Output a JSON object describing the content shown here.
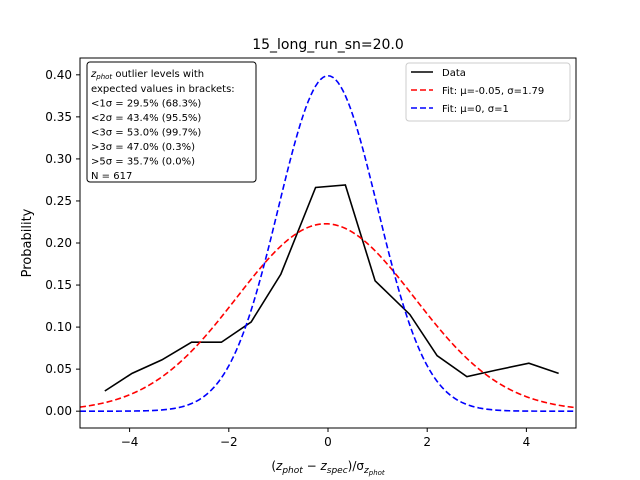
{
  "chart_data": {
    "type": "line",
    "title": "15_long_run_sn=20.0",
    "xlabel": "(z_phot − z_spec)/σ_z_phot",
    "ylabel": "Probability",
    "xlim": [
      -5,
      5
    ],
    "ylim": [
      -0.02,
      0.42
    ],
    "xticks": [
      -4,
      -2,
      0,
      2,
      4
    ],
    "xtick_labels": [
      "−4",
      "−2",
      "0",
      "2",
      "4"
    ],
    "yticks": [
      0.0,
      0.05,
      0.1,
      0.15,
      0.2,
      0.25,
      0.3,
      0.35,
      0.4
    ],
    "ytick_labels": [
      "0.00",
      "0.05",
      "0.10",
      "0.15",
      "0.20",
      "0.25",
      "0.30",
      "0.35",
      "0.40"
    ],
    "grid": false,
    "legend_position": "top-right",
    "series": [
      {
        "name": "Data",
        "kind": "data",
        "color": "#000000",
        "dash": "solid",
        "x": [
          -4.5,
          -3.95,
          -3.35,
          -2.75,
          -2.15,
          -1.55,
          -0.95,
          -0.25,
          0.35,
          0.95,
          1.65,
          2.2,
          2.8,
          3.4,
          4.05,
          4.65
        ],
        "y": [
          0.024,
          0.045,
          0.061,
          0.082,
          0.082,
          0.106,
          0.163,
          0.266,
          0.269,
          0.155,
          0.115,
          0.066,
          0.041,
          0.049,
          0.057,
          0.045
        ]
      },
      {
        "name": "Fit: μ=-0.05, σ=1.79",
        "kind": "gaussian",
        "mu": -0.05,
        "sigma": 1.79,
        "color": "#ff0000",
        "dash": "dashed"
      },
      {
        "name": "Fit: μ=0, σ=1",
        "kind": "gaussian",
        "mu": 0,
        "sigma": 1,
        "color": "#0000ff",
        "dash": "dashed"
      }
    ],
    "annotation": {
      "lines": [
        "z_phot outlier levels with",
        " expected values in brackets:",
        "<1σ = 29.5% (68.3%)",
        "<2σ = 43.4% (95.5%)",
        "<3σ = 53.0% (99.7%)",
        ">3σ = 47.0% (0.3%)",
        ">5σ = 35.7% (0.0%)",
        "N = 617"
      ]
    }
  }
}
